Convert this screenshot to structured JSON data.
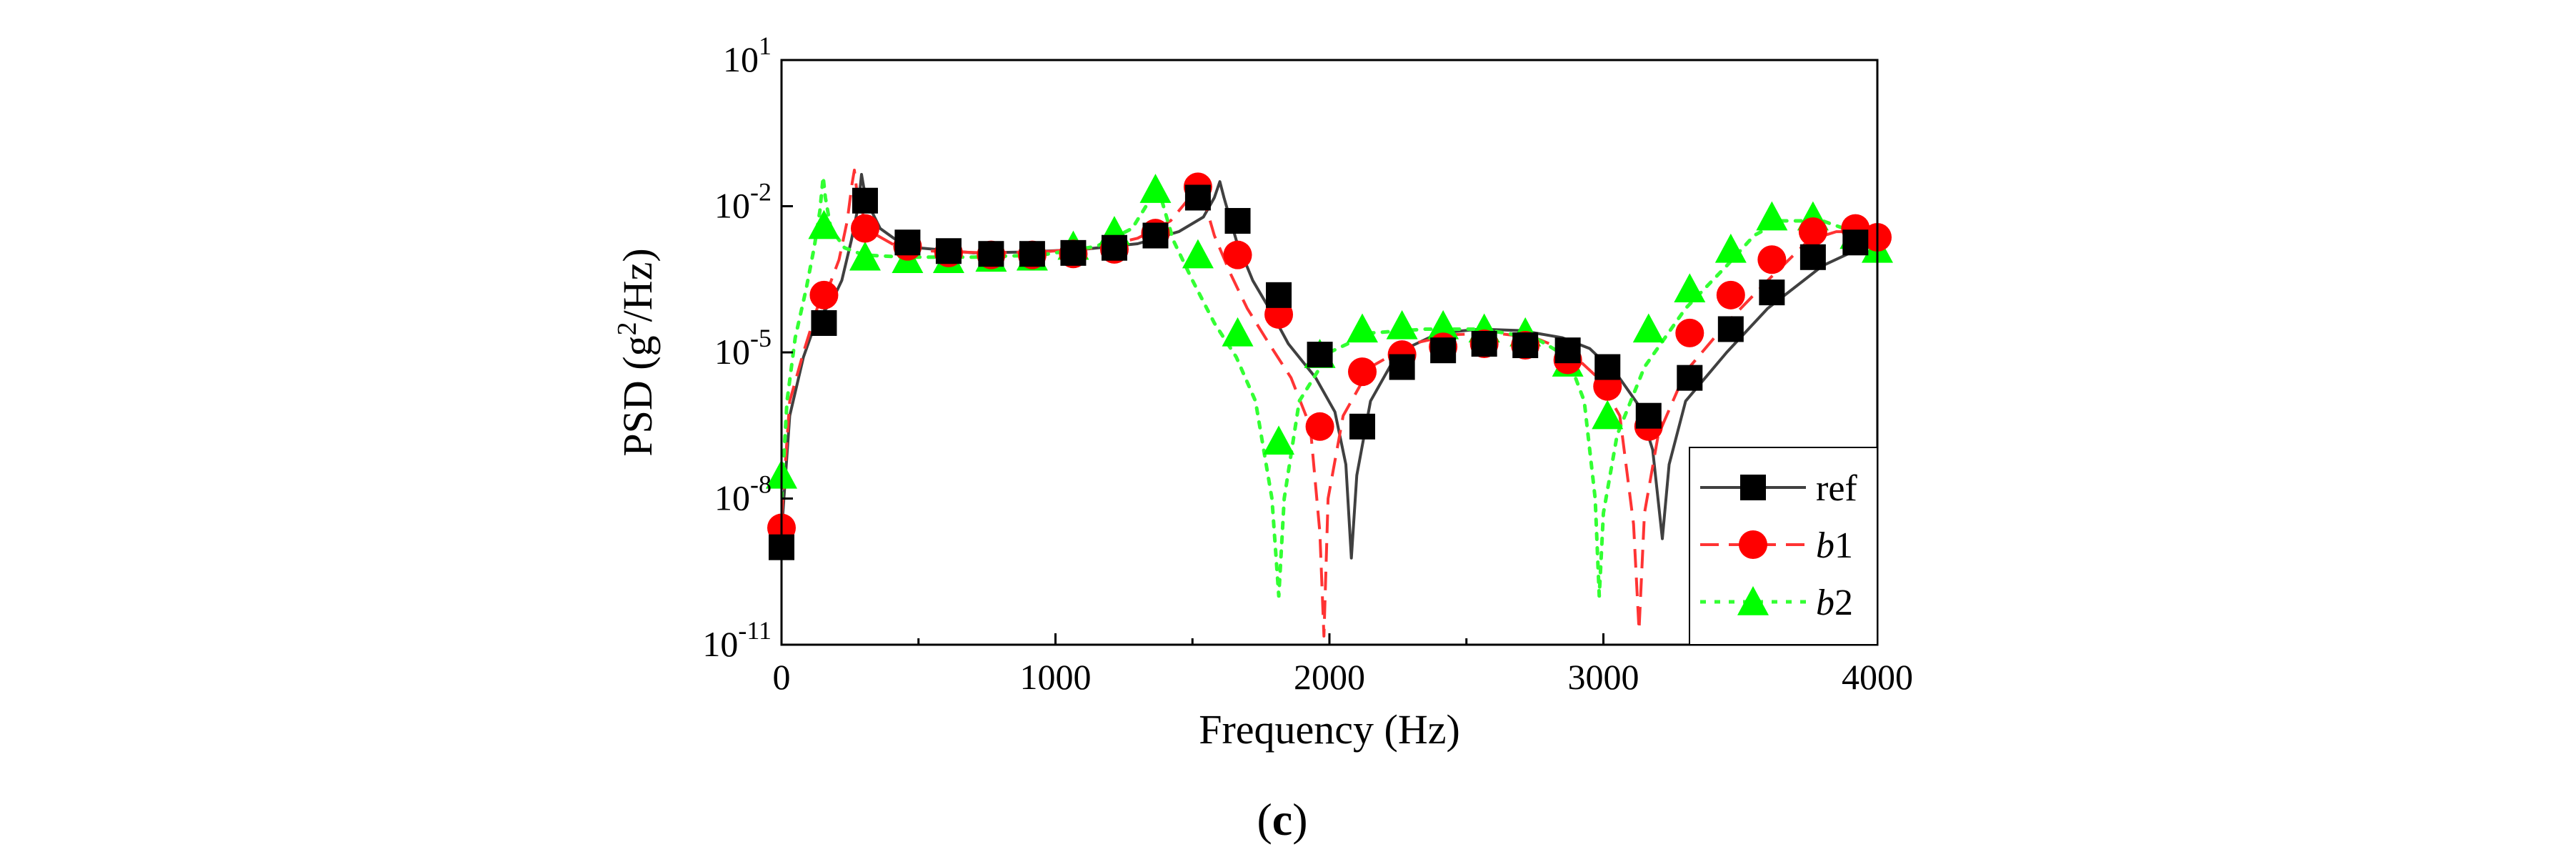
{
  "figure": {
    "caption_open": "(",
    "caption_letter": "c",
    "caption_close": ")"
  },
  "chart_data": {
    "type": "line",
    "title": "",
    "xlabel": "Frequency (Hz)",
    "ylabel": {
      "prefix": "PSD (g",
      "superscript": "2",
      "suffix": "/Hz)"
    },
    "xscale": "linear",
    "yscale": "log",
    "xlim": [
      0,
      4000
    ],
    "ylim": [
      1e-11,
      10
    ],
    "x_ticks": [
      {
        "value": 0,
        "label": "0"
      },
      {
        "value": 1000,
        "label": "1000"
      },
      {
        "value": 2000,
        "label": "2000"
      },
      {
        "value": 3000,
        "label": "3000"
      },
      {
        "value": 4000,
        "label": "4000"
      }
    ],
    "y_ticks": [
      {
        "value": 1e-11,
        "base": "10",
        "exp": "-11"
      },
      {
        "value": 1e-08,
        "base": "10",
        "exp": "-8"
      },
      {
        "value": 1e-05,
        "base": "10",
        "exp": "-5"
      },
      {
        "value": 0.01,
        "base": "10",
        "exp": "-2"
      },
      {
        "value": 10,
        "base": "10",
        "exp": "1"
      }
    ],
    "legend": {
      "position": "bottom-right",
      "entries": [
        {
          "series": "ref",
          "text": "ref",
          "italic": ""
        },
        {
          "series": "b1",
          "text": "1",
          "italic": "b"
        },
        {
          "series": "b2",
          "text": "2",
          "italic": "b"
        }
      ]
    },
    "series": [
      {
        "name": "ref",
        "color": "#404040",
        "marker_color": "#000000",
        "marker": "square",
        "dash": "solid",
        "curve": [
          [
            0,
            2e-09
          ],
          [
            30,
            5e-07
          ],
          [
            80,
            8e-06
          ],
          [
            130,
            5e-05
          ],
          [
            180,
            0.0001
          ],
          [
            220,
            0.0003
          ],
          [
            255,
            0.002
          ],
          [
            280,
            0.01
          ],
          [
            292,
            0.045
          ],
          [
            300,
            0.025
          ],
          [
            320,
            0.01
          ],
          [
            360,
            0.0035
          ],
          [
            420,
            0.002
          ],
          [
            500,
            0.0014
          ],
          [
            700,
            0.0011
          ],
          [
            900,
            0.00115
          ],
          [
            1100,
            0.0013
          ],
          [
            1300,
            0.0017
          ],
          [
            1450,
            0.003
          ],
          [
            1540,
            0.006
          ],
          [
            1580,
            0.015
          ],
          [
            1600,
            0.032
          ],
          [
            1615,
            0.015
          ],
          [
            1660,
            0.002
          ],
          [
            1720,
            0.0003
          ],
          [
            1780,
            8e-05
          ],
          [
            1850,
            1.5e-05
          ],
          [
            1950,
            3e-06
          ],
          [
            2020,
            6e-07
          ],
          [
            2060,
            5e-08
          ],
          [
            2080,
            6e-10
          ],
          [
            2100,
            3e-08
          ],
          [
            2150,
            1e-06
          ],
          [
            2250,
            1e-05
          ],
          [
            2400,
            2.5e-05
          ],
          [
            2550,
            3e-05
          ],
          [
            2700,
            2.8e-05
          ],
          [
            2850,
            2e-05
          ],
          [
            2950,
            1.2e-05
          ],
          [
            3050,
            3.5e-06
          ],
          [
            3130,
            8e-07
          ],
          [
            3180,
            1e-07
          ],
          [
            3215,
            1.5e-09
          ],
          [
            3240,
            5e-08
          ],
          [
            3300,
            1e-06
          ],
          [
            3450,
            1e-05
          ],
          [
            3600,
            8e-05
          ],
          [
            3800,
            0.0006
          ],
          [
            4000,
            0.002
          ]
        ],
        "markers": [
          [
            0,
            1e-09
          ],
          [
            155,
            4e-05
          ],
          [
            305,
            0.013
          ],
          [
            460,
            0.0018
          ],
          [
            610,
            0.0012
          ],
          [
            765,
            0.00105
          ],
          [
            915,
            0.00105
          ],
          [
            1065,
            0.0011
          ],
          [
            1215,
            0.0014
          ],
          [
            1365,
            0.0025
          ],
          [
            1520,
            0.015
          ],
          [
            1665,
            0.005
          ],
          [
            1815,
            0.00015
          ],
          [
            1965,
            9e-06
          ],
          [
            2120,
            3e-07
          ],
          [
            2265,
            5e-06
          ],
          [
            2415,
            1.1e-05
          ],
          [
            2565,
            1.5e-05
          ],
          [
            2715,
            1.4e-05
          ],
          [
            2870,
            1.1e-05
          ],
          [
            3015,
            5e-06
          ],
          [
            3165,
            5e-07
          ],
          [
            3315,
            3e-06
          ],
          [
            3465,
            3e-05
          ],
          [
            3615,
            0.00017
          ],
          [
            3765,
            0.0009
          ],
          [
            3920,
            0.0018
          ]
        ]
      },
      {
        "name": "b1",
        "color": "#ff3333",
        "marker_color": "#ff0000",
        "marker": "circle",
        "dash": "dash",
        "curve": [
          [
            0,
            4e-09
          ],
          [
            30,
            1e-06
          ],
          [
            80,
            1e-05
          ],
          [
            130,
            8e-05
          ],
          [
            170,
            0.0002
          ],
          [
            210,
            0.0008
          ],
          [
            240,
            0.005
          ],
          [
            258,
            0.03
          ],
          [
            266,
            0.055
          ],
          [
            275,
            0.02
          ],
          [
            300,
            0.006
          ],
          [
            350,
            0.0025
          ],
          [
            420,
            0.0015
          ],
          [
            550,
            0.0012
          ],
          [
            750,
            0.0011
          ],
          [
            950,
            0.00115
          ],
          [
            1150,
            0.0014
          ],
          [
            1300,
            0.0022
          ],
          [
            1420,
            0.005
          ],
          [
            1490,
            0.015
          ],
          [
            1520,
            0.04
          ],
          [
            1540,
            0.015
          ],
          [
            1580,
            0.0025
          ],
          [
            1640,
            0.0004
          ],
          [
            1700,
            8e-05
          ],
          [
            1780,
            1.5e-05
          ],
          [
            1860,
            3e-06
          ],
          [
            1930,
            3e-07
          ],
          [
            1965,
            2e-09
          ],
          [
            1980,
            1.5e-11
          ],
          [
            1995,
            1e-08
          ],
          [
            2050,
            5e-07
          ],
          [
            2150,
            5e-06
          ],
          [
            2300,
            1.5e-05
          ],
          [
            2450,
            2.3e-05
          ],
          [
            2600,
            2.5e-05
          ],
          [
            2750,
            2e-05
          ],
          [
            2880,
            1e-05
          ],
          [
            2980,
            3e-06
          ],
          [
            3060,
            5e-07
          ],
          [
            3110,
            3e-09
          ],
          [
            3130,
            2e-11
          ],
          [
            3150,
            5e-09
          ],
          [
            3200,
            2e-07
          ],
          [
            3300,
            4e-06
          ],
          [
            3450,
            4e-05
          ],
          [
            3600,
            0.0003
          ],
          [
            3750,
            0.002
          ],
          [
            3850,
            0.003
          ],
          [
            4000,
            0.003
          ]
        ],
        "markers": [
          [
            0,
            2.5e-09
          ],
          [
            155,
            0.00015
          ],
          [
            305,
            0.0035
          ],
          [
            460,
            0.0015
          ],
          [
            610,
            0.0011
          ],
          [
            765,
            0.001
          ],
          [
            915,
            0.001
          ],
          [
            1065,
            0.00105
          ],
          [
            1215,
            0.0013
          ],
          [
            1365,
            0.0028
          ],
          [
            1520,
            0.025
          ],
          [
            1665,
            0.001
          ],
          [
            1815,
            6e-05
          ],
          [
            1965,
            3e-07
          ],
          [
            2120,
            4e-06
          ],
          [
            2265,
            9e-06
          ],
          [
            2415,
            1.3e-05
          ],
          [
            2565,
            1.5e-05
          ],
          [
            2715,
            1.4e-05
          ],
          [
            2870,
            7e-06
          ],
          [
            3015,
            2e-06
          ],
          [
            3165,
            3e-07
          ],
          [
            3315,
            2.5e-05
          ],
          [
            3465,
            0.00015
          ],
          [
            3615,
            0.0008
          ],
          [
            3765,
            0.003
          ],
          [
            3920,
            0.0035
          ],
          [
            4000,
            0.0023
          ]
        ]
      },
      {
        "name": "b2",
        "color": "#33ff33",
        "marker_color": "#00ff00",
        "marker": "triangle",
        "dash": "dot",
        "curve": [
          [
            0,
            1e-08
          ],
          [
            20,
            1e-06
          ],
          [
            50,
            2e-05
          ],
          [
            90,
            0.0002
          ],
          [
            120,
            0.0015
          ],
          [
            140,
            0.008
          ],
          [
            152,
            0.04
          ],
          [
            160,
            0.015
          ],
          [
            180,
            0.0035
          ],
          [
            230,
            0.0014
          ],
          [
            300,
            0.001
          ],
          [
            450,
            0.0009
          ],
          [
            700,
            0.0009
          ],
          [
            950,
            0.001
          ],
          [
            1150,
            0.0015
          ],
          [
            1280,
            0.0035
          ],
          [
            1350,
            0.015
          ],
          [
            1370,
            0.035
          ],
          [
            1390,
            0.012
          ],
          [
            1430,
            0.002
          ],
          [
            1500,
            0.0003
          ],
          [
            1580,
            4e-05
          ],
          [
            1660,
            8e-06
          ],
          [
            1730,
            1e-06
          ],
          [
            1790,
            1e-08
          ],
          [
            1815,
            1e-10
          ],
          [
            1835,
            1e-08
          ],
          [
            1890,
            1e-06
          ],
          [
            2000,
            1e-05
          ],
          [
            2150,
            2.5e-05
          ],
          [
            2350,
            3e-05
          ],
          [
            2550,
            3e-05
          ],
          [
            2750,
            2e-05
          ],
          [
            2870,
            8e-06
          ],
          [
            2930,
            1e-06
          ],
          [
            2970,
            1e-08
          ],
          [
            2985,
            1e-10
          ],
          [
            3000,
            5e-09
          ],
          [
            3050,
            2e-07
          ],
          [
            3150,
            5e-06
          ],
          [
            3300,
            8e-05
          ],
          [
            3450,
            0.0006
          ],
          [
            3550,
            0.0025
          ],
          [
            3650,
            0.005
          ],
          [
            3800,
            0.005
          ],
          [
            4000,
            0.002
          ]
        ],
        "markers": [
          [
            0,
            3e-08
          ],
          [
            155,
            0.004
          ],
          [
            305,
            0.0009
          ],
          [
            460,
            0.0008
          ],
          [
            610,
            0.0008
          ],
          [
            765,
            0.00085
          ],
          [
            915,
            0.0009
          ],
          [
            1065,
            0.0015
          ],
          [
            1215,
            0.003
          ],
          [
            1365,
            0.022
          ],
          [
            1520,
            0.001
          ],
          [
            1665,
            2.5e-05
          ],
          [
            1815,
            1.5e-07
          ],
          [
            1965,
            9e-06
          ],
          [
            2120,
            3e-05
          ],
          [
            2265,
            3.5e-05
          ],
          [
            2415,
            3.5e-05
          ],
          [
            2565,
            3e-05
          ],
          [
            2715,
            2.5e-05
          ],
          [
            2870,
            6e-06
          ],
          [
            3015,
            5e-07
          ],
          [
            3165,
            3e-05
          ],
          [
            3315,
            0.0002
          ],
          [
            3465,
            0.0013
          ],
          [
            3615,
            0.006
          ],
          [
            3765,
            0.006
          ],
          [
            3920,
            0.0025
          ],
          [
            4000,
            0.0013
          ]
        ]
      }
    ]
  }
}
